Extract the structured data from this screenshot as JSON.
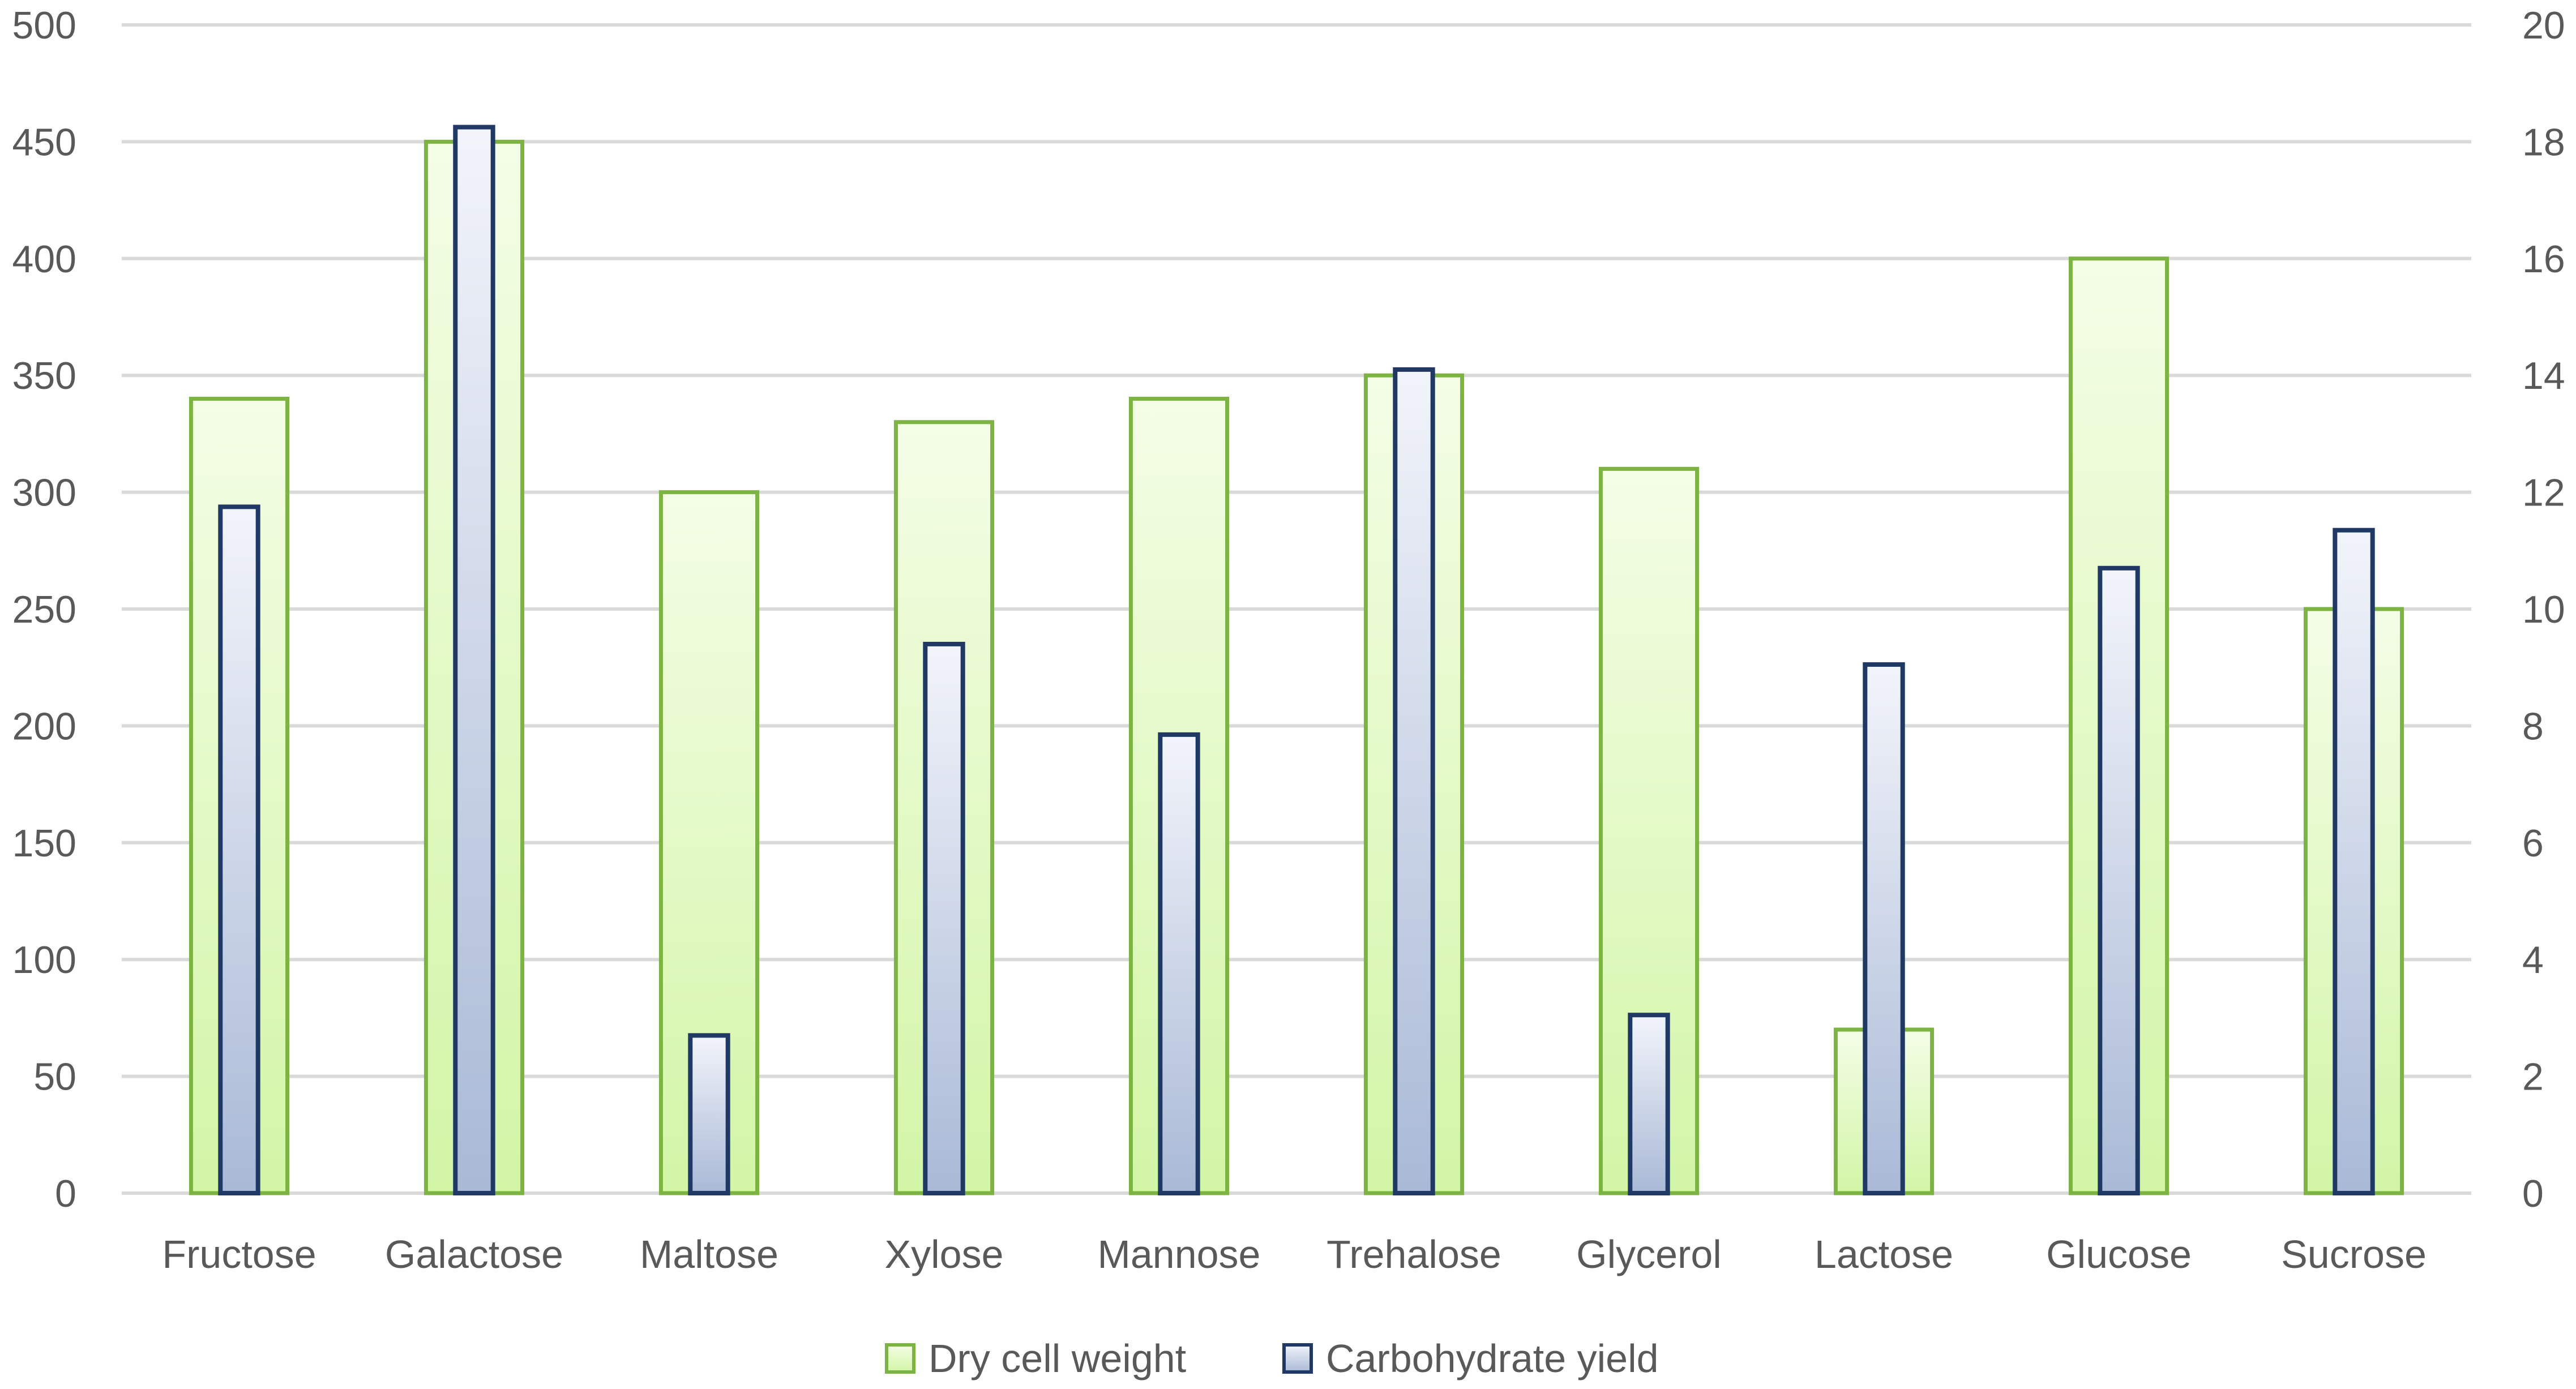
{
  "chart_data": {
    "type": "bar",
    "categories": [
      "Fructose",
      "Galactose",
      "Maltose",
      "Xylose",
      "Mannose",
      "Trehalose",
      "Glycerol",
      "Lactose",
      "Glucose",
      "Sucrose"
    ],
    "series": [
      {
        "name": "Dry cell weight",
        "axis": "left",
        "values": [
          340,
          450,
          300,
          330,
          340,
          350,
          310,
          70,
          400,
          250
        ],
        "fill_top": "#f4fde6",
        "fill_bottom": "#d2f5a6",
        "stroke": "#7cb342"
      },
      {
        "name": "Carbohydrate yield",
        "axis": "right",
        "values": [
          11.75,
          18.25,
          2.7,
          9.4,
          7.85,
          14.1,
          3.05,
          9.05,
          10.7,
          11.35
        ],
        "fill_top": "#f2f4fa",
        "fill_bottom": "#a9b9d6",
        "stroke": "#1f3864"
      }
    ],
    "y_left": {
      "min": 0,
      "max": 500,
      "ticks": [
        "0",
        "50",
        "100",
        "150",
        "200",
        "250",
        "300",
        "350",
        "400",
        "450",
        "500"
      ]
    },
    "y_right": {
      "min": 0,
      "max": 20,
      "ticks": [
        "0",
        "2",
        "4",
        "6",
        "8",
        "10",
        "12",
        "14",
        "16",
        "18",
        "20"
      ]
    },
    "grid": true,
    "legend_position": "bottom",
    "title": "",
    "xlabel": "",
    "ylabel": ""
  }
}
